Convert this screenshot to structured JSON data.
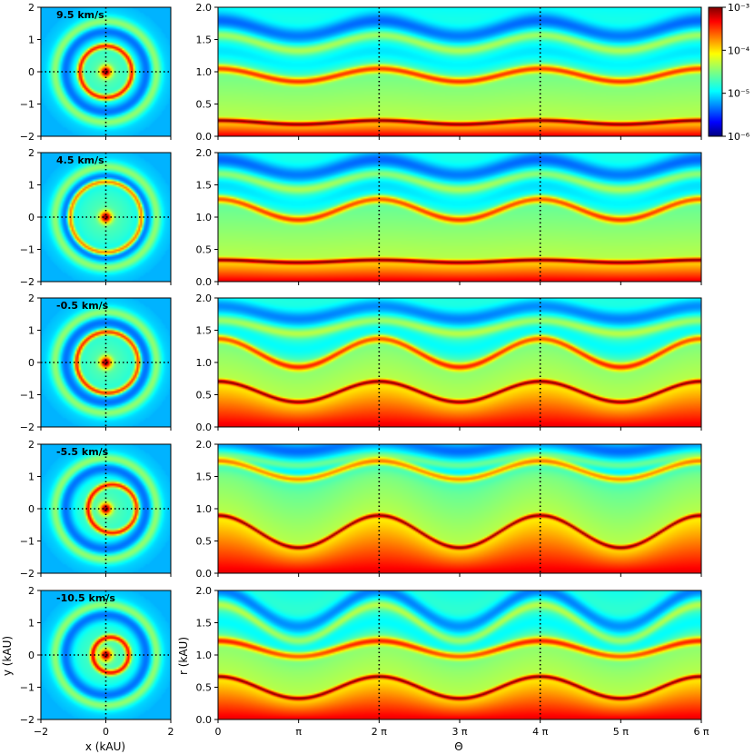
{
  "chart_data": {
    "type": "heatmap",
    "rows": [
      {
        "velocity_label": "9.5 km/s",
        "disk_ring_radius": 0.8,
        "disk_ring_offset": 0.0,
        "radial_profile": {
          "inner_band_r": 0.22,
          "inner_band_amp": 0.03,
          "shell_r": 0.95,
          "shell_amp": 0.1,
          "outer_band_r": 1.45,
          "outer_band_amp": 0.12,
          "phase": 0
        }
      },
      {
        "velocity_label": "4.5 km/s",
        "disk_ring_radius": 1.1,
        "disk_ring_offset": 0.0,
        "radial_profile": {
          "inner_band_r": 0.32,
          "inner_band_amp": 0.02,
          "shell_r": 1.12,
          "shell_amp": 0.16,
          "outer_band_r": 1.55,
          "outer_band_amp": 0.12,
          "phase": 0
        }
      },
      {
        "velocity_label": "-0.5 km/s",
        "disk_ring_radius": 0.95,
        "disk_ring_offset": 0.05,
        "radial_profile": {
          "inner_band_r": 0.55,
          "inner_band_amp": 0.16,
          "shell_r": 1.15,
          "shell_amp": 0.22,
          "outer_band_r": 1.55,
          "outer_band_amp": 0.1,
          "phase": 0
        }
      },
      {
        "velocity_label": "-5.5 km/s",
        "disk_ring_radius": 0.75,
        "disk_ring_offset": 0.2,
        "radial_profile": {
          "inner_band_r": 0.65,
          "inner_band_amp": 0.25,
          "shell_r": 1.6,
          "shell_amp": 0.14,
          "outer_band_r": 1.75,
          "outer_band_amp": 0.08,
          "phase": 0
        }
      },
      {
        "velocity_label": "-10.5 km/s",
        "disk_ring_radius": 0.55,
        "disk_ring_offset": 0.15,
        "radial_profile": {
          "inner_band_r": 0.5,
          "inner_band_amp": 0.17,
          "shell_r": 1.1,
          "shell_amp": 0.12,
          "outer_band_r": 1.5,
          "outer_band_amp": 0.28,
          "phase": 0
        }
      }
    ],
    "left_panels": {
      "xlabel": "x (kAU)",
      "ylabel": "y (kAU)",
      "xlim": [
        -2,
        2
      ],
      "ylim": [
        -2,
        2
      ],
      "xticks": [
        "−2",
        "0",
        "2"
      ],
      "yticks": [
        "−2",
        "−1",
        "0",
        "1",
        "2"
      ]
    },
    "right_panels": {
      "xlabel": "Θ",
      "ylabel": "r (kAU)",
      "xlim": [
        0,
        6
      ],
      "ylim": [
        0,
        2
      ],
      "xtick_labels": [
        "0",
        "π",
        "2 π",
        "3 π",
        "4 π",
        "5 π",
        "6 π"
      ],
      "ytick_labels": [
        "0.0",
        "0.5",
        "1.0",
        "1.5",
        "2.0"
      ],
      "dotted_vertical_lines_at": [
        2,
        4
      ]
    },
    "colorbar": {
      "scale": "log",
      "min": 1e-06,
      "max": 0.001,
      "tick_labels": [
        "10⁻³",
        "10⁻⁴",
        "10⁻⁵",
        "10⁻⁶"
      ],
      "colormap": "jet"
    }
  }
}
